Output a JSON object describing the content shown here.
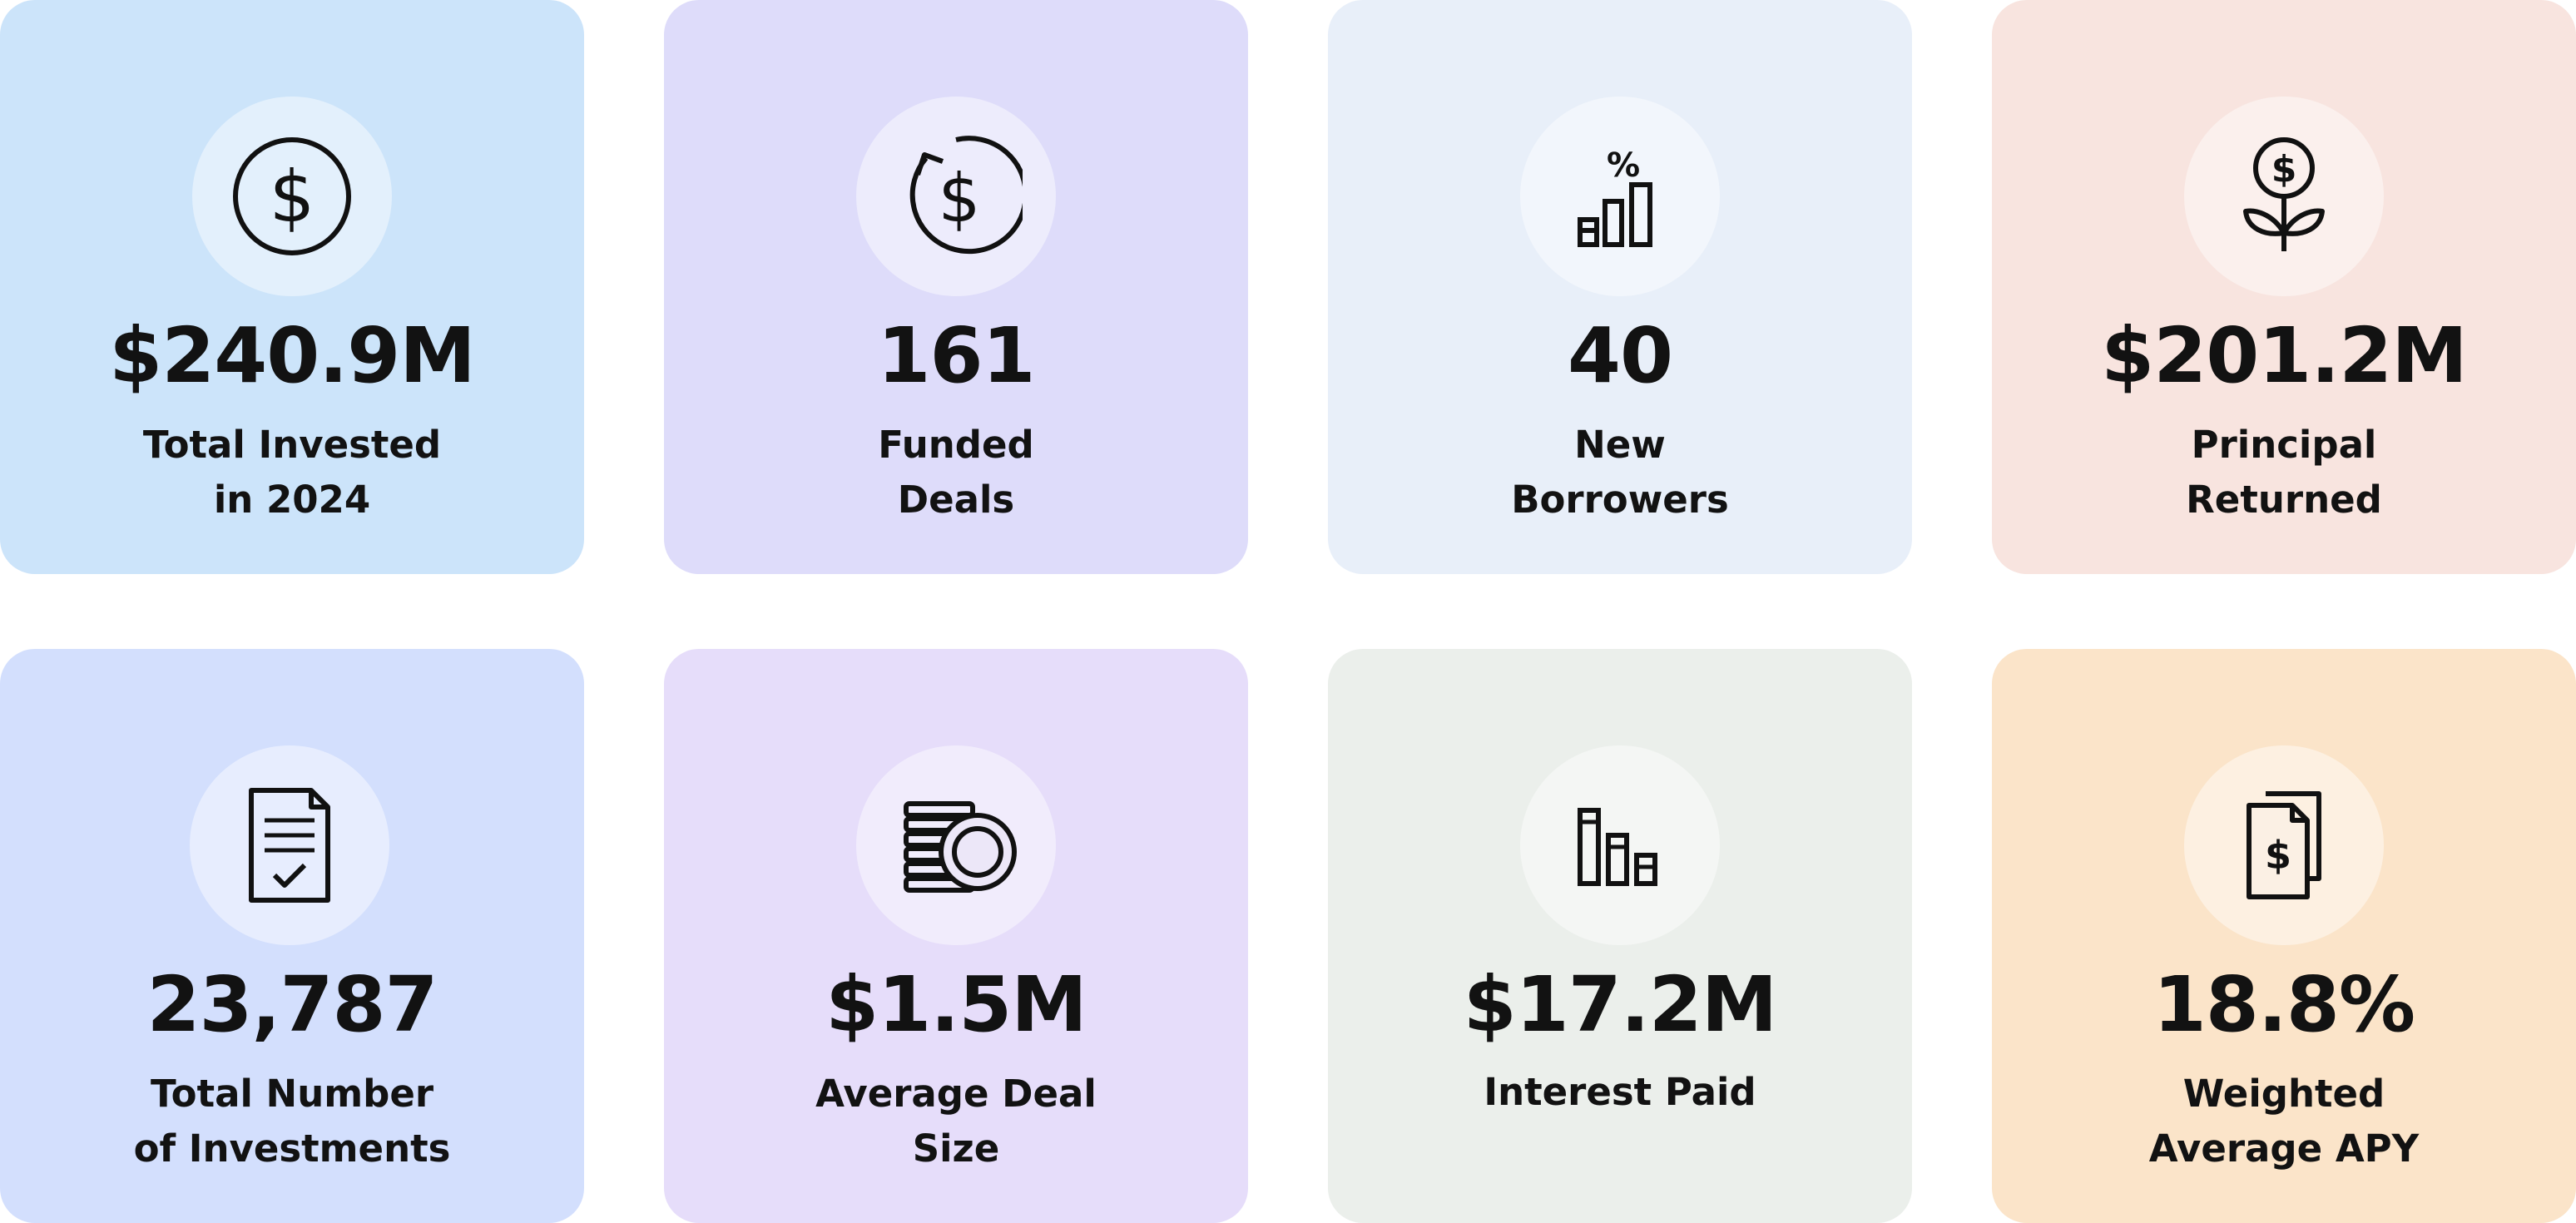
{
  "stats": [
    {
      "value": "$240.9M",
      "label_line1": "Total Invested",
      "label_line2": "in 2024",
      "icon": "dollar-coin-icon",
      "bg": "#cce4fa"
    },
    {
      "value": "161",
      "label_line1": "Funded",
      "label_line2": "Deals",
      "icon": "dollar-refresh-icon",
      "bg": "#dedcfa"
    },
    {
      "value": "40",
      "label_line1": "New",
      "label_line2": "Borrowers",
      "icon": "percent-bar-chart-icon",
      "bg": "#e8eff9"
    },
    {
      "value": "$201.2M",
      "label_line1": "Principal",
      "label_line2": "Returned",
      "icon": "money-plant-icon",
      "bg": "#f8e4df"
    },
    {
      "value": "23,787",
      "label_line1": "Total Number",
      "label_line2": "of Investments",
      "icon": "document-check-icon",
      "bg": "#d3dffd"
    },
    {
      "value": "$1.5M",
      "label_line1": "Average Deal",
      "label_line2": "Size",
      "icon": "coin-stack-icon",
      "bg": "#e6ddfa"
    },
    {
      "value": "$17.2M",
      "label_line1": "Interest Paid",
      "label_line2": "",
      "icon": "descending-bars-icon",
      "bg": "#ebefeb"
    },
    {
      "value": "18.8%",
      "label_line1": "Weighted",
      "label_line2": "Average APY",
      "icon": "dollar-documents-icon",
      "bg": "#fbe4c9"
    }
  ]
}
